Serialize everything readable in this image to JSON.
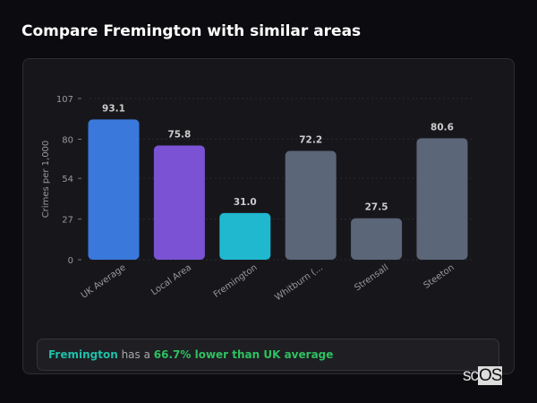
{
  "header": {
    "title": "Compare Fremington with similar areas"
  },
  "chart_data": {
    "type": "bar",
    "ylabel": "Crimes per 1,000",
    "ylim": [
      0,
      107
    ],
    "yticks": [
      0,
      27,
      54,
      80,
      107
    ],
    "categories": [
      "UK Average",
      "Local Area",
      "Fremington",
      "Whitburn (...",
      "Strensall",
      "Steeton"
    ],
    "values": [
      93.1,
      75.8,
      31.0,
      72.2,
      27.5,
      80.6
    ],
    "data_labels": [
      "93.1",
      "75.8",
      "31.0",
      "72.2",
      "27.5",
      "80.6"
    ],
    "colors": [
      "#3a78dc",
      "#7b52d4",
      "#1fb8cf",
      "#5b6678",
      "#5b6678",
      "#5b6678"
    ],
    "grid": true
  },
  "summary": {
    "area": "Fremington",
    "middle": " has a ",
    "highlight": "66.7% lower than UK average"
  },
  "logo": {
    "text": "scOS"
  }
}
